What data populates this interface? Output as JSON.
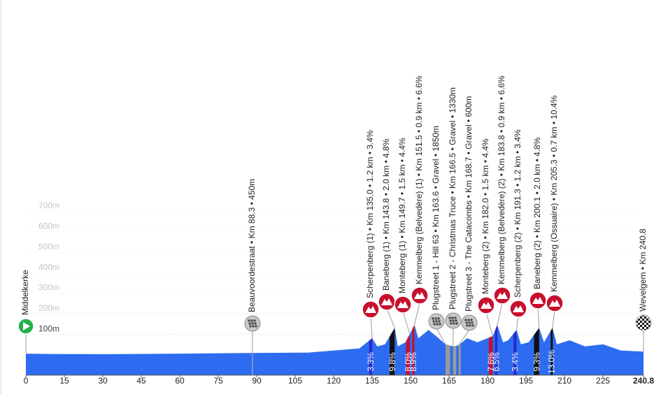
{
  "chart_data": {
    "type": "area",
    "color": "#2d6cf0",
    "x": [
      0,
      10,
      30,
      60,
      88.3,
      110,
      120,
      130,
      133,
      135,
      137,
      140,
      143.8,
      145,
      148,
      149.7,
      151.5,
      153,
      157,
      160,
      163.6,
      166.5,
      168.7,
      172,
      176,
      180,
      182,
      183.8,
      186,
      188,
      191.3,
      193,
      196,
      200.1,
      202,
      205.3,
      207,
      212,
      218,
      225,
      232,
      240.8
    ],
    "values": [
      5,
      3,
      2,
      5,
      8,
      10,
      20,
      30,
      60,
      80,
      40,
      50,
      130,
      40,
      60,
      100,
      145,
      80,
      120,
      90,
      50,
      40,
      45,
      80,
      60,
      80,
      90,
      145,
      60,
      70,
      120,
      50,
      60,
      130,
      60,
      130,
      50,
      70,
      40,
      50,
      20,
      15
    ],
    "xlim": [
      0,
      240.8
    ],
    "ylim": [
      -100,
      700
    ],
    "xticks": [
      0,
      15,
      30,
      45,
      60,
      75,
      90,
      105,
      120,
      135,
      150,
      165,
      180,
      195,
      210,
      225,
      240.8
    ],
    "yticks": [
      {
        "value": 100,
        "label": "100m"
      },
      {
        "value": 200,
        "label": "200m"
      },
      {
        "value": 300,
        "label": "300m"
      },
      {
        "value": 400,
        "label": "400m"
      },
      {
        "value": 500,
        "label": "500m"
      },
      {
        "value": 600,
        "label": "600m"
      },
      {
        "value": 700,
        "label": "700m"
      }
    ],
    "points": [
      {
        "icon": "start",
        "km": 0,
        "label": "Middelkerke"
      },
      {
        "icon": "cobble",
        "km": 88.3,
        "label": "Beauvoordestraat • Km 88.3 • 450m"
      },
      {
        "icon": "climb",
        "km": 135,
        "label": "Scherpenberg (1) • Km 135.0 • 1.2 km • 3.4%",
        "segment": [
          133.8,
          135
        ],
        "color": "#2a2ad0",
        "gradient": "3.3%"
      },
      {
        "icon": "climb",
        "km": 143.8,
        "label": "Baneberg (1) • Km 143.8 • 2.0 km • 4.8%",
        "segment": [
          141.8,
          143.8
        ],
        "color": "#111111",
        "gradient": "9.8%"
      },
      {
        "icon": "climb",
        "km": 149.7,
        "label": "Monteberg (1) • Km 149.7 • 1.5 km • 4.4%",
        "segment": [
          148.2,
          149.7
        ],
        "color": "#c8102e",
        "gradient": "8.0%"
      },
      {
        "icon": "climb",
        "km": 151.5,
        "label": "Kemmelberg (Belvedère) (1) • Km 151.5 • 0.9 km • 6.6%",
        "segment": [
          150.6,
          151.5
        ],
        "color": "#c8102e",
        "gradient": "8.9%"
      },
      {
        "icon": "cobble",
        "km": 163.6,
        "label": "Plugstreet 1 - Hill 63 • Km 163.6 • Gravel • 1850m",
        "segment": [
          163.6,
          165.4
        ],
        "color": "#9a9a9a"
      },
      {
        "icon": "cobble",
        "km": 166.5,
        "label": "Plugstreet 2 - Christmas Truce • Km 166.5 • Gravel • 1330m",
        "segment": [
          166.5,
          167.8
        ],
        "color": "#9a9a9a"
      },
      {
        "icon": "cobble",
        "km": 168.7,
        "label": "Plugstreet 3 - The Catacombs • Km 168.7 • Gravel • 600m",
        "segment": [
          168.7,
          169.3
        ],
        "color": "#9a9a9a"
      },
      {
        "icon": "climb",
        "km": 182,
        "label": "Monteberg (2) • Km 182.0 • 1.5 km • 4.4%",
        "segment": [
          180.5,
          182
        ],
        "color": "#c8102e",
        "gradient": "7.6%"
      },
      {
        "icon": "climb",
        "km": 183.8,
        "label": "Kemmelberg (Belvedère) (2) • Km 183.8 • 0.9 km • 6.6%",
        "segment": [
          182.9,
          183.8
        ],
        "color": "#2a2ad0",
        "gradient": "6.5%"
      },
      {
        "icon": "climb",
        "km": 191.3,
        "label": "Scherpenberg (2) • Km 191.3 • 1.2 km • 3.4%",
        "segment": [
          190.1,
          191.3
        ],
        "color": "#2a2ad0",
        "gradient": "3.4%"
      },
      {
        "icon": "climb",
        "km": 200.1,
        "label": "Baneberg (2) • Km 200.1 • 2.0 km • 4.8%",
        "segment": [
          198.1,
          200.1
        ],
        "color": "#111111",
        "gradient": "9.3%"
      },
      {
        "icon": "climb",
        "km": 205.3,
        "label": "Kemmelberg (Ossuaire) • Km 205.3 • 0.7 km • 10.4%",
        "segment": [
          204.6,
          205.3
        ],
        "color": "#111111",
        "gradient": "13.0%"
      },
      {
        "icon": "finish",
        "km": 240.8,
        "label": "Wevelgem • Km 240.8"
      }
    ]
  }
}
